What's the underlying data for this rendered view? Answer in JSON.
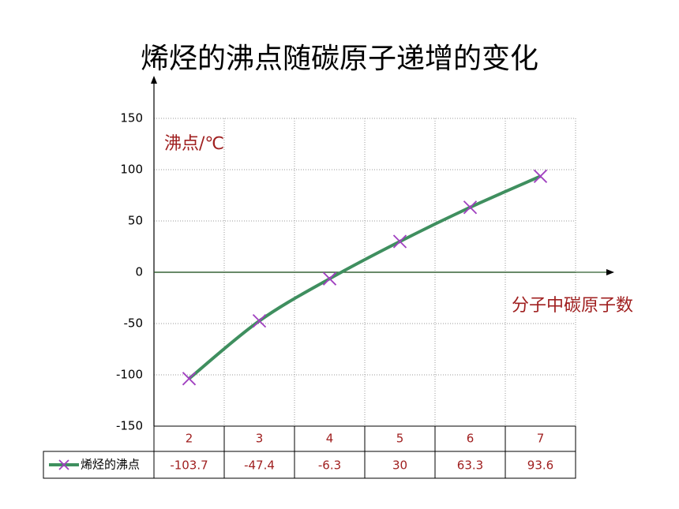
{
  "chart_data": {
    "type": "line",
    "title": "烯烃的沸点随碳原子递增的变化",
    "y_axis_label": "沸点/℃",
    "x_axis_label": "分子中碳原子数",
    "categories": [
      "2",
      "3",
      "4",
      "5",
      "6",
      "7"
    ],
    "series": [
      {
        "name": "烯烃的沸点",
        "color": "#3f8f5f",
        "marker_color": "#a040c0",
        "values": [
          -103.7,
          -47.4,
          -6.3,
          30,
          63.3,
          93.6
        ]
      }
    ],
    "ylim": [
      -150,
      150
    ],
    "yticks": [
      -150,
      -100,
      -50,
      0,
      50,
      100,
      150
    ],
    "grid": true,
    "smooth": true,
    "data_table": true
  }
}
